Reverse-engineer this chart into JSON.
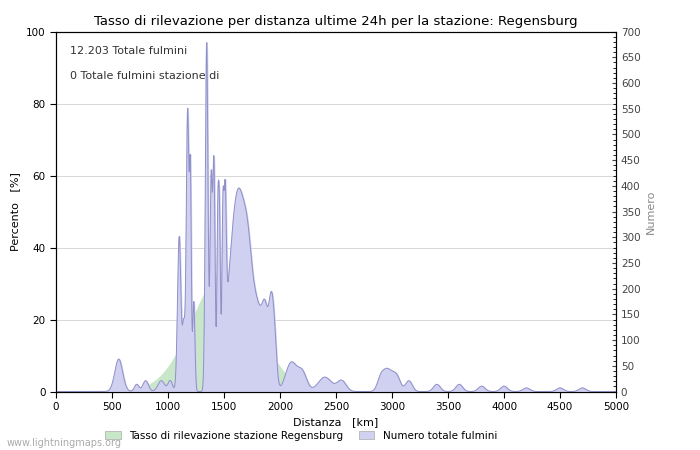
{
  "title": "Tasso di rilevazione per distanza ultime 24h per la stazione: Regensburg",
  "xlabel": "Distanza   [km]",
  "ylabel_left": "Percento   [%]",
  "ylabel_right": "Numero",
  "annotation_line1": "12.203 Totale fulmini",
  "annotation_line2": "0 Totale fulmini stazione di",
  "xlim": [
    0,
    5000
  ],
  "ylim_left": [
    0,
    100
  ],
  "ylim_right": [
    0,
    700
  ],
  "xticks": [
    0,
    500,
    1000,
    1500,
    2000,
    2500,
    3000,
    3500,
    4000,
    4500,
    5000
  ],
  "yticks_left": [
    0,
    20,
    40,
    60,
    80,
    100
  ],
  "yticks_right": [
    0,
    50,
    100,
    150,
    200,
    250,
    300,
    350,
    400,
    450,
    500,
    550,
    600,
    650,
    700
  ],
  "legend_label1": "Tasso di rilevazione stazione Regensburg",
  "legend_label2": "Numero totale fulmini",
  "color_fill_green": "#c8e6c8",
  "color_fill_blue": "#d0d0f0",
  "color_line": "#9090c8",
  "watermark": "www.lightningmaps.org",
  "background_color": "#ffffff",
  "grid_color": "#c8c8c8"
}
